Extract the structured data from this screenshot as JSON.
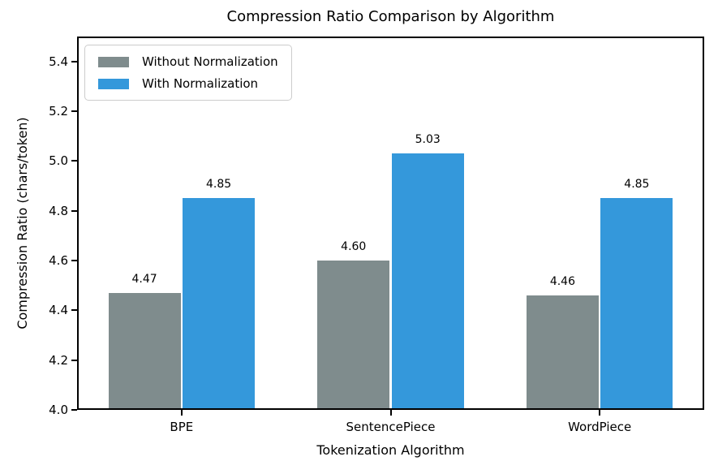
{
  "figure": {
    "background": "#ffffff",
    "text_color": "#000000",
    "frame_color": "#000000"
  },
  "chart_data": {
    "type": "bar",
    "title": "Compression Ratio Comparison by Algorithm",
    "xlabel": "Tokenization Algorithm",
    "ylabel": "Compression Ratio (chars/token)",
    "categories": [
      "BPE",
      "SentencePiece",
      "WordPiece"
    ],
    "series": [
      {
        "name": "Without Normalization",
        "color": "#7f8c8d",
        "values": [
          4.47,
          4.6,
          4.46
        ]
      },
      {
        "name": "With Normalization",
        "color": "#3498db",
        "values": [
          4.85,
          5.03,
          4.85
        ]
      }
    ],
    "ylim": [
      4.0,
      5.5
    ],
    "yticks": [
      4.0,
      4.2,
      4.4,
      4.6,
      4.8,
      5.0,
      5.2,
      5.4
    ],
    "value_labels": [
      [
        "4.47",
        "4.60",
        "4.46"
      ],
      [
        "4.85",
        "5.03",
        "4.85"
      ]
    ],
    "grid": false,
    "legend_position": "upper-left",
    "bar_width_fraction": 0.345,
    "bar_offset_fraction": 0.1775
  }
}
